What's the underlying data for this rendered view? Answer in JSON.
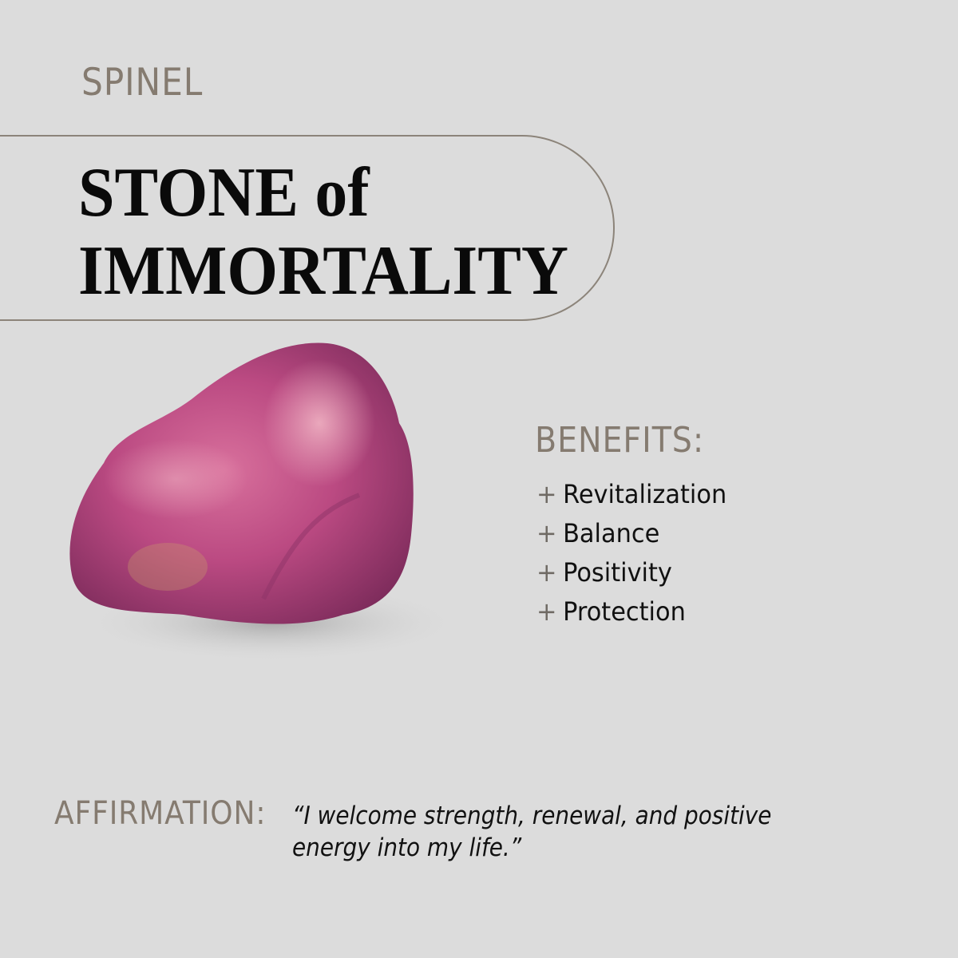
{
  "header": {
    "kicker": "SPINEL",
    "title_line1": "STONE of",
    "title_line2": "IMMORTALITY"
  },
  "image": {
    "subject": "raw-pink-spinel-stone",
    "colors": {
      "main": "#b8487e",
      "highlight": "#e7a0b6",
      "shadow": "#7a2a58"
    }
  },
  "benefits": {
    "heading": "BENEFITS:",
    "bullet": "+",
    "items": [
      {
        "label": "Revitalization"
      },
      {
        "label": "Balance"
      },
      {
        "label": "Positivity"
      },
      {
        "label": "Protection"
      }
    ]
  },
  "affirmation": {
    "label": "AFFIRMATION:",
    "line1": "“I welcome strength, renewal, and positive",
    "line2": "energy into my life.”"
  },
  "colors": {
    "background": "#dcdcdc",
    "accent_text": "#857b70",
    "outline": "#8c847a"
  }
}
